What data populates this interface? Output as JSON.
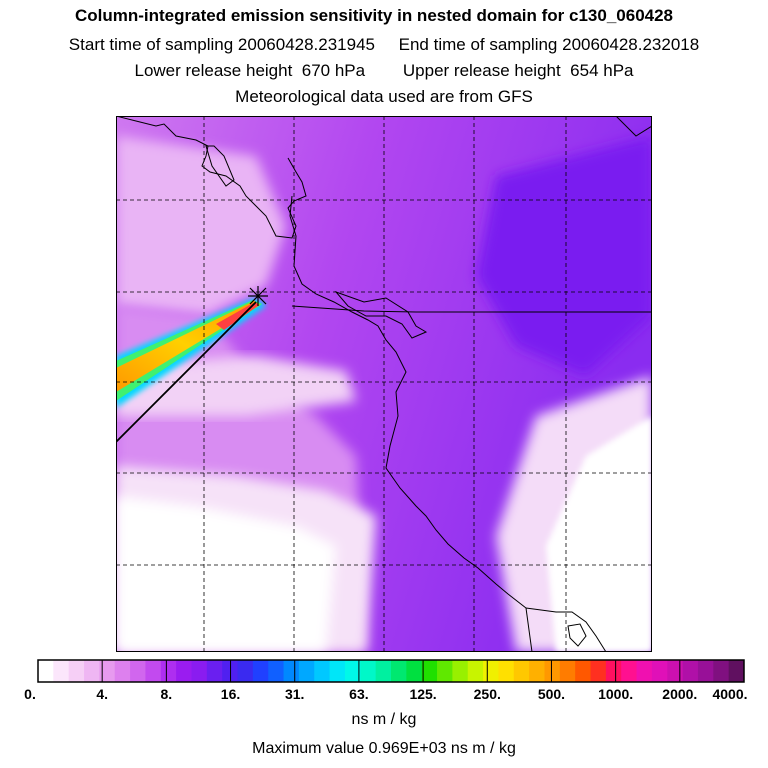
{
  "header": {
    "title": "Column-integrated emission sensitivity in nested domain for c130_060428",
    "start_time": "Start time of sampling 20060428.231945",
    "end_time": "End time of sampling 20060428.232018",
    "lower_release": "Lower release height  670 hPa",
    "upper_release": "Upper release height  654 hPa",
    "met_data": "Meteorological data used are from GFS"
  },
  "colors": {
    "background": "#ffffff",
    "low_sensitivity": "#e6a8f2",
    "mid_sensitivity": "#a830f0",
    "high_sensitivity": "#8020f0",
    "plume_core": "#ffcc00"
  },
  "legend": {
    "ticks": [
      "0.",
      "4.",
      "8.",
      "16.",
      "31.",
      "63.",
      "125.",
      "250.",
      "500.",
      "1000.",
      "2000.",
      "4000."
    ],
    "swatches": [
      "#ffffff",
      "#fbe6fb",
      "#f6cff6",
      "#efb6f3",
      "#e79aef",
      "#dd80ee",
      "#d166ee",
      "#c24aef",
      "#ae2ef0",
      "#9a1cf0",
      "#8a1cf0",
      "#6a1ff0",
      "#5020f0",
      "#3a2af0",
      "#2040ff",
      "#1060ff",
      "#0088ff",
      "#00a8ff",
      "#00c8ff",
      "#00e6f8",
      "#00f8e8",
      "#00f8c8",
      "#00f0a0",
      "#00e870",
      "#00e040",
      "#20e000",
      "#60e800",
      "#98f000",
      "#c8f400",
      "#f0f000",
      "#ffe000",
      "#ffc800",
      "#ffb000",
      "#ff9800",
      "#ff7c00",
      "#ff5800",
      "#ff3020",
      "#ff1060",
      "#ff1090",
      "#f010b0",
      "#e010b8",
      "#cc10b0",
      "#b010a8",
      "#981098",
      "#801080",
      "#601060"
    ],
    "units": "ns m / kg"
  },
  "footer": {
    "max_value": "Maximum value  0.969E+03 ns m / kg"
  }
}
